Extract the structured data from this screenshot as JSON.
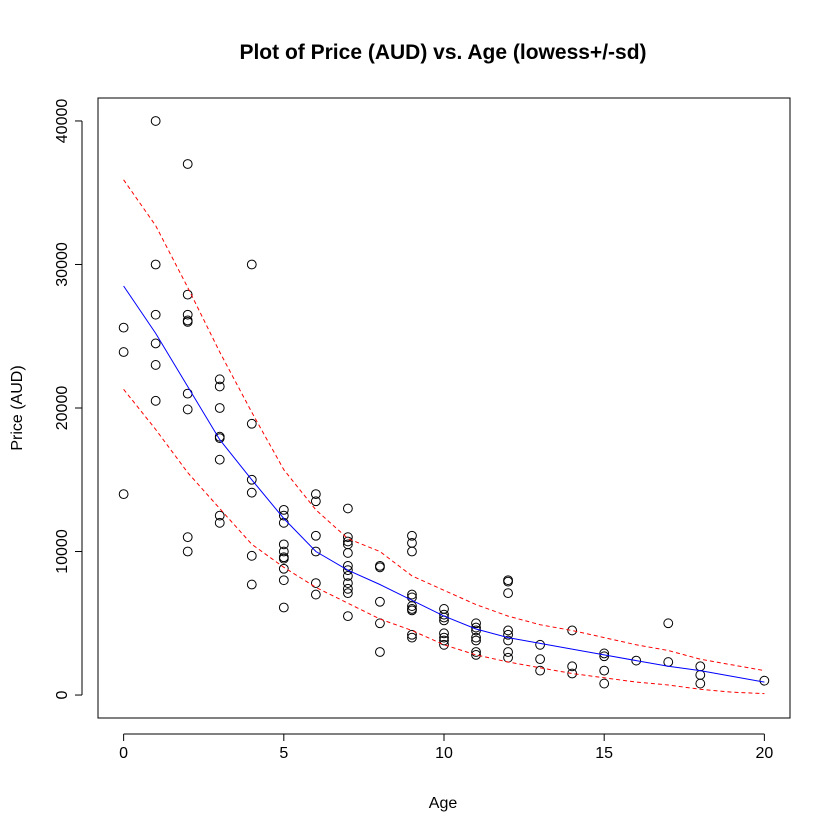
{
  "chart_data": {
    "type": "scatter",
    "title": "Plot of Price (AUD) vs. Age   (lowess+/-sd)",
    "xlabel": "Age",
    "ylabel": "Price (AUD)",
    "xlim": [
      -0.8,
      20.8
    ],
    "ylim": [
      -1600,
      41600
    ],
    "xticks": [
      0,
      5,
      10,
      15,
      20
    ],
    "yticks": [
      0,
      10000,
      20000,
      30000,
      40000
    ],
    "xtick_labels": [
      "0",
      "5",
      "10",
      "15",
      "20"
    ],
    "ytick_labels": [
      "0",
      "10000",
      "20000",
      "30000",
      "40000"
    ],
    "colors": {
      "points": "#000000",
      "lowess": "#0000ff",
      "band": "#ff0000"
    },
    "series": [
      {
        "kind": "points",
        "marker": "open-circle",
        "points": [
          [
            0,
            25600
          ],
          [
            0,
            23900
          ],
          [
            0,
            14000
          ],
          [
            1,
            40000
          ],
          [
            1,
            30000
          ],
          [
            1,
            26500
          ],
          [
            1,
            24500
          ],
          [
            1,
            23000
          ],
          [
            1,
            20500
          ],
          [
            2,
            37000
          ],
          [
            2,
            27900
          ],
          [
            2,
            26500
          ],
          [
            2,
            26000
          ],
          [
            2,
            26100
          ],
          [
            2,
            21000
          ],
          [
            2,
            19900
          ],
          [
            2,
            11000
          ],
          [
            2,
            10000
          ],
          [
            3,
            22000
          ],
          [
            3,
            21500
          ],
          [
            3,
            20000
          ],
          [
            3,
            18000
          ],
          [
            3,
            17900
          ],
          [
            3,
            16400
          ],
          [
            3,
            12500
          ],
          [
            3,
            12000
          ],
          [
            4,
            30000
          ],
          [
            4,
            18900
          ],
          [
            4,
            15000
          ],
          [
            4,
            14100
          ],
          [
            4,
            9700
          ],
          [
            4,
            7700
          ],
          [
            5,
            12900
          ],
          [
            5,
            12500
          ],
          [
            5,
            12000
          ],
          [
            5,
            10500
          ],
          [
            5,
            10000
          ],
          [
            5,
            9600
          ],
          [
            5,
            9500
          ],
          [
            5,
            8800
          ],
          [
            5,
            8000
          ],
          [
            5,
            6100
          ],
          [
            6,
            14000
          ],
          [
            6,
            13500
          ],
          [
            6,
            11100
          ],
          [
            6,
            10000
          ],
          [
            6,
            7800
          ],
          [
            6,
            7000
          ],
          [
            7,
            13000
          ],
          [
            7,
            11000
          ],
          [
            7,
            10700
          ],
          [
            7,
            10500
          ],
          [
            7,
            9900
          ],
          [
            7,
            9000
          ],
          [
            7,
            8700
          ],
          [
            7,
            8300
          ],
          [
            7,
            7800
          ],
          [
            7,
            7400
          ],
          [
            7,
            7100
          ],
          [
            7,
            5500
          ],
          [
            8,
            9000
          ],
          [
            8,
            8900
          ],
          [
            8,
            6500
          ],
          [
            8,
            5000
          ],
          [
            8,
            3000
          ],
          [
            9,
            11100
          ],
          [
            9,
            10600
          ],
          [
            9,
            10000
          ],
          [
            9,
            7000
          ],
          [
            9,
            6800
          ],
          [
            9,
            6200
          ],
          [
            9,
            6000
          ],
          [
            9,
            5900
          ],
          [
            9,
            4200
          ],
          [
            9,
            4000
          ],
          [
            10,
            6000
          ],
          [
            10,
            5600
          ],
          [
            10,
            5400
          ],
          [
            10,
            5200
          ],
          [
            10,
            4300
          ],
          [
            10,
            4000
          ],
          [
            10,
            3800
          ],
          [
            10,
            3500
          ],
          [
            11,
            5000
          ],
          [
            11,
            4700
          ],
          [
            11,
            4500
          ],
          [
            11,
            4000
          ],
          [
            11,
            3800
          ],
          [
            11,
            3000
          ],
          [
            11,
            2800
          ],
          [
            12,
            8000
          ],
          [
            12,
            7900
          ],
          [
            12,
            7100
          ],
          [
            12,
            4500
          ],
          [
            12,
            4200
          ],
          [
            12,
            3800
          ],
          [
            12,
            3000
          ],
          [
            12,
            2600
          ],
          [
            13,
            3500
          ],
          [
            13,
            2500
          ],
          [
            13,
            1700
          ],
          [
            14,
            4500
          ],
          [
            14,
            2000
          ],
          [
            14,
            1500
          ],
          [
            15,
            2900
          ],
          [
            15,
            2700
          ],
          [
            15,
            1700
          ],
          [
            15,
            800
          ],
          [
            16,
            2400
          ],
          [
            17,
            5000
          ],
          [
            17,
            2300
          ],
          [
            18,
            2000
          ],
          [
            18,
            1400
          ],
          [
            18,
            800
          ],
          [
            20,
            1000
          ]
        ]
      },
      {
        "kind": "line",
        "style": "solid",
        "color": "#0000ff",
        "x": [
          0,
          1,
          2,
          3,
          4,
          5,
          6,
          7,
          8,
          9,
          10,
          11,
          12,
          13,
          14,
          15,
          16,
          17,
          18,
          19,
          20
        ],
        "y": [
          28500,
          25200,
          21500,
          17800,
          15000,
          12300,
          10000,
          8700,
          7700,
          6600,
          5500,
          4600,
          4000,
          3600,
          3200,
          2800,
          2400,
          2000,
          1700,
          1300,
          900
        ]
      },
      {
        "kind": "line",
        "style": "dashed",
        "color": "#ff0000",
        "x": [
          0,
          1,
          2,
          3,
          4,
          5,
          6,
          7,
          8,
          9,
          10,
          11,
          12,
          13,
          14,
          15,
          16,
          17,
          18,
          19,
          20
        ],
        "y": [
          35900,
          32700,
          28400,
          23900,
          19700,
          15700,
          12900,
          10900,
          10000,
          8300,
          7300,
          6300,
          5500,
          4900,
          4500,
          4000,
          3500,
          3100,
          2500,
          2100,
          1700
        ]
      },
      {
        "kind": "line",
        "style": "dashed",
        "color": "#ff0000",
        "x": [
          0,
          1,
          2,
          3,
          4,
          5,
          6,
          7,
          8,
          9,
          10,
          11,
          12,
          13,
          14,
          15,
          16,
          17,
          18,
          19,
          20
        ],
        "y": [
          21300,
          18500,
          15500,
          13000,
          10500,
          8900,
          7500,
          6400,
          5300,
          4500,
          3500,
          2800,
          2300,
          1900,
          1500,
          1200,
          900,
          700,
          400,
          200,
          100
        ]
      }
    ]
  }
}
